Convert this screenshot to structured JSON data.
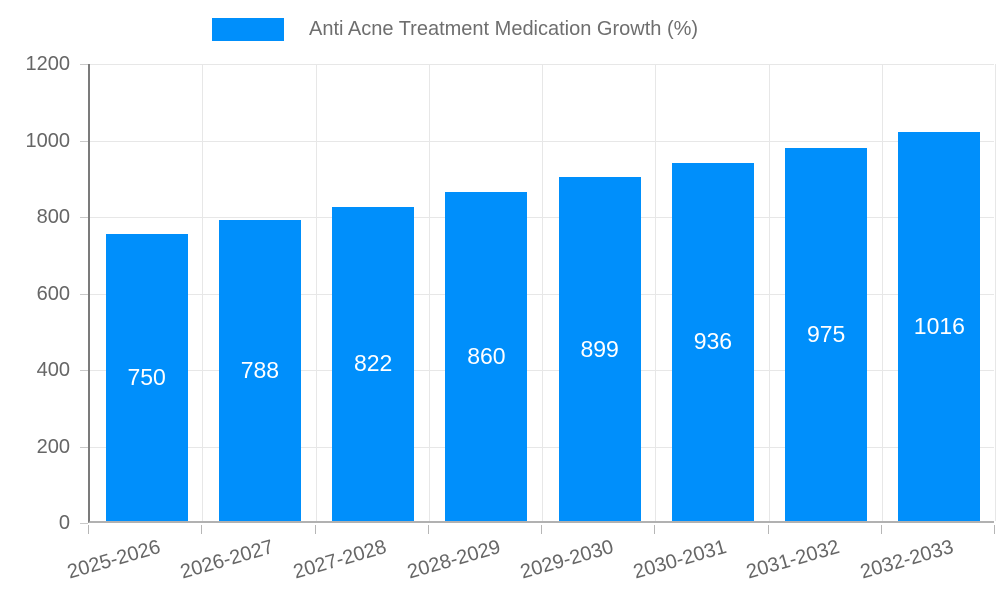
{
  "chart_data": {
    "type": "bar",
    "title": "Anti Acne Treatment Medication Growth (%)",
    "categories": [
      "2025-2026",
      "2026-2027",
      "2027-2028",
      "2028-2029",
      "2029-2030",
      "2030-2031",
      "2031-2032",
      "2032-2033"
    ],
    "values": [
      750,
      788,
      822,
      860,
      899,
      936,
      975,
      1016
    ],
    "series_name": "Anti Acne Treatment Medication Growth (%)",
    "xlabel": "",
    "ylabel": "",
    "ylim": [
      0,
      1200
    ],
    "y_ticks": [
      0,
      200,
      400,
      600,
      800,
      1000,
      1200
    ],
    "grid": "on",
    "legend_position": "top",
    "x_label_rotation": -16,
    "colors": {
      "bar": "#008FFB",
      "bar_value_label": "#ffffff",
      "axis_text": "#666666",
      "legend_text": "#6e6e6e",
      "gridline": "#e7e7e7",
      "y_axis_line": "#7b7b7b",
      "x_axis_line": "#b1b1b1"
    }
  }
}
